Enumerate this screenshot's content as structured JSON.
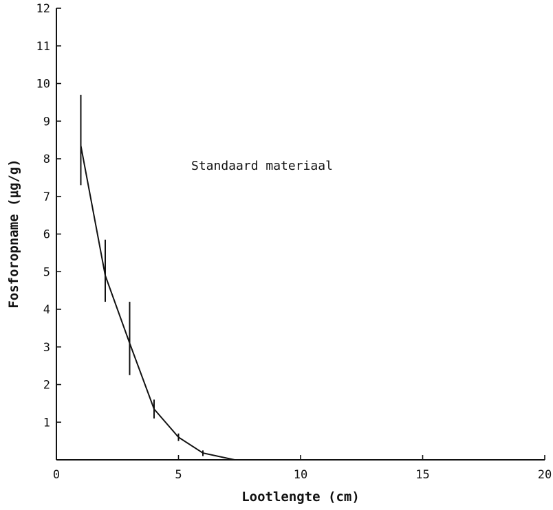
{
  "chart_data": {
    "type": "line",
    "xlabel": "Lootlengte (cm)",
    "ylabel": "Fosforopname (μg/g)",
    "annotation": "Standaard materiaal",
    "xlim": [
      0,
      20
    ],
    "ylim": [
      0,
      12
    ],
    "x_ticks": [
      0,
      5,
      10,
      15,
      20
    ],
    "y_ticks": [
      1,
      2,
      3,
      4,
      5,
      6,
      7,
      8,
      9,
      10,
      11,
      12
    ],
    "grid": false,
    "series": [
      {
        "x": [
          1,
          2,
          3,
          4,
          5,
          6,
          7.3
        ],
        "y": [
          8.35,
          4.9,
          3.1,
          1.35,
          0.6,
          0.18,
          0.0
        ],
        "err_low": [
          7.3,
          4.2,
          2.25,
          1.1,
          0.5,
          0.1,
          null
        ],
        "err_high": [
          9.7,
          5.85,
          4.2,
          1.6,
          0.7,
          0.25,
          null
        ]
      }
    ]
  }
}
